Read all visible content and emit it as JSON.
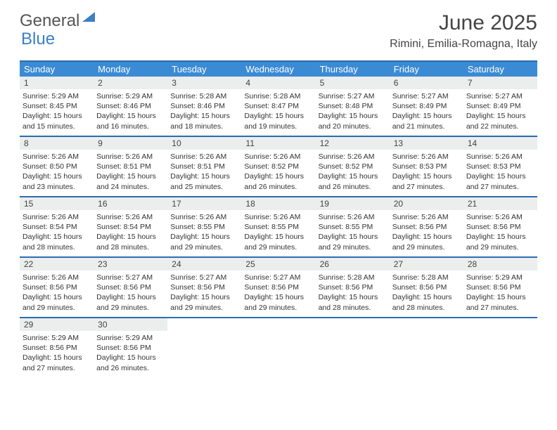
{
  "logo": {
    "text_gray": "General",
    "text_blue": "Blue"
  },
  "title": "June 2025",
  "location": "Rimini, Emilia-Romagna, Italy",
  "colors": {
    "header_bg": "#3b8bd4",
    "border": "#2a6db0",
    "daynum_bg": "#eceded",
    "text": "#333333",
    "title_text": "#444444",
    "logo_gray": "#555555",
    "logo_blue": "#3b7fc4",
    "background": "#ffffff"
  },
  "typography": {
    "title_fontsize": 30,
    "location_fontsize": 16,
    "dayname_fontsize": 13,
    "daynum_fontsize": 12,
    "body_fontsize": 10.5
  },
  "layout": {
    "columns": 7,
    "rows": 5,
    "cell_min_height": 84
  },
  "daynames": [
    "Sunday",
    "Monday",
    "Tuesday",
    "Wednesday",
    "Thursday",
    "Friday",
    "Saturday"
  ],
  "days": [
    {
      "n": "1",
      "sr": "5:29 AM",
      "ss": "8:45 PM",
      "dl": "15 hours and 15 minutes."
    },
    {
      "n": "2",
      "sr": "5:29 AM",
      "ss": "8:46 PM",
      "dl": "15 hours and 16 minutes."
    },
    {
      "n": "3",
      "sr": "5:28 AM",
      "ss": "8:46 PM",
      "dl": "15 hours and 18 minutes."
    },
    {
      "n": "4",
      "sr": "5:28 AM",
      "ss": "8:47 PM",
      "dl": "15 hours and 19 minutes."
    },
    {
      "n": "5",
      "sr": "5:27 AM",
      "ss": "8:48 PM",
      "dl": "15 hours and 20 minutes."
    },
    {
      "n": "6",
      "sr": "5:27 AM",
      "ss": "8:49 PM",
      "dl": "15 hours and 21 minutes."
    },
    {
      "n": "7",
      "sr": "5:27 AM",
      "ss": "8:49 PM",
      "dl": "15 hours and 22 minutes."
    },
    {
      "n": "8",
      "sr": "5:26 AM",
      "ss": "8:50 PM",
      "dl": "15 hours and 23 minutes."
    },
    {
      "n": "9",
      "sr": "5:26 AM",
      "ss": "8:51 PM",
      "dl": "15 hours and 24 minutes."
    },
    {
      "n": "10",
      "sr": "5:26 AM",
      "ss": "8:51 PM",
      "dl": "15 hours and 25 minutes."
    },
    {
      "n": "11",
      "sr": "5:26 AM",
      "ss": "8:52 PM",
      "dl": "15 hours and 26 minutes."
    },
    {
      "n": "12",
      "sr": "5:26 AM",
      "ss": "8:52 PM",
      "dl": "15 hours and 26 minutes."
    },
    {
      "n": "13",
      "sr": "5:26 AM",
      "ss": "8:53 PM",
      "dl": "15 hours and 27 minutes."
    },
    {
      "n": "14",
      "sr": "5:26 AM",
      "ss": "8:53 PM",
      "dl": "15 hours and 27 minutes."
    },
    {
      "n": "15",
      "sr": "5:26 AM",
      "ss": "8:54 PM",
      "dl": "15 hours and 28 minutes."
    },
    {
      "n": "16",
      "sr": "5:26 AM",
      "ss": "8:54 PM",
      "dl": "15 hours and 28 minutes."
    },
    {
      "n": "17",
      "sr": "5:26 AM",
      "ss": "8:55 PM",
      "dl": "15 hours and 29 minutes."
    },
    {
      "n": "18",
      "sr": "5:26 AM",
      "ss": "8:55 PM",
      "dl": "15 hours and 29 minutes."
    },
    {
      "n": "19",
      "sr": "5:26 AM",
      "ss": "8:55 PM",
      "dl": "15 hours and 29 minutes."
    },
    {
      "n": "20",
      "sr": "5:26 AM",
      "ss": "8:56 PM",
      "dl": "15 hours and 29 minutes."
    },
    {
      "n": "21",
      "sr": "5:26 AM",
      "ss": "8:56 PM",
      "dl": "15 hours and 29 minutes."
    },
    {
      "n": "22",
      "sr": "5:26 AM",
      "ss": "8:56 PM",
      "dl": "15 hours and 29 minutes."
    },
    {
      "n": "23",
      "sr": "5:27 AM",
      "ss": "8:56 PM",
      "dl": "15 hours and 29 minutes."
    },
    {
      "n": "24",
      "sr": "5:27 AM",
      "ss": "8:56 PM",
      "dl": "15 hours and 29 minutes."
    },
    {
      "n": "25",
      "sr": "5:27 AM",
      "ss": "8:56 PM",
      "dl": "15 hours and 29 minutes."
    },
    {
      "n": "26",
      "sr": "5:28 AM",
      "ss": "8:56 PM",
      "dl": "15 hours and 28 minutes."
    },
    {
      "n": "27",
      "sr": "5:28 AM",
      "ss": "8:56 PM",
      "dl": "15 hours and 28 minutes."
    },
    {
      "n": "28",
      "sr": "5:29 AM",
      "ss": "8:56 PM",
      "dl": "15 hours and 27 minutes."
    },
    {
      "n": "29",
      "sr": "5:29 AM",
      "ss": "8:56 PM",
      "dl": "15 hours and 27 minutes."
    },
    {
      "n": "30",
      "sr": "5:29 AM",
      "ss": "8:56 PM",
      "dl": "15 hours and 26 minutes."
    }
  ],
  "labels": {
    "sunrise_prefix": "Sunrise: ",
    "sunset_prefix": "Sunset: ",
    "daylight_prefix": "Daylight: "
  }
}
